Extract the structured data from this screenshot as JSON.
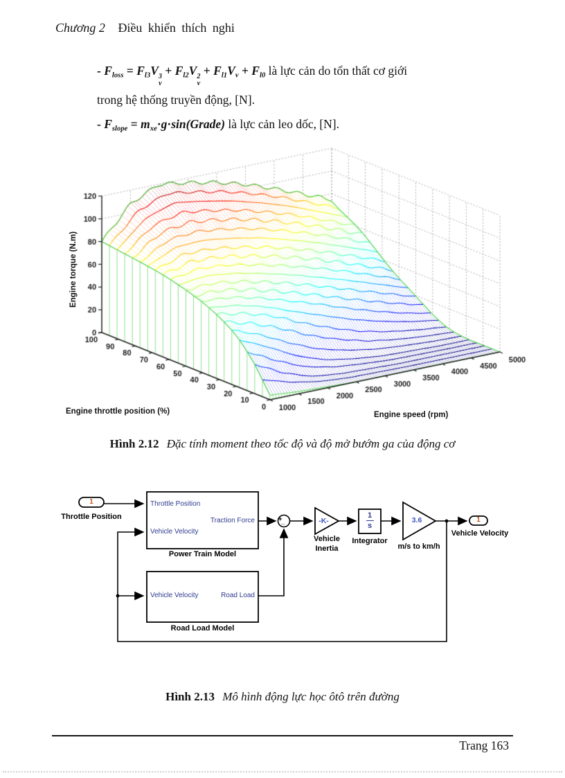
{
  "page": {
    "header": {
      "chapter": "Chương 2",
      "title": "Điều khiển thích nghi"
    },
    "footer": {
      "page_label": "Trang 163"
    }
  },
  "formulas": {
    "loss_tokens": [
      {
        "c": "op",
        "v": "- "
      },
      {
        "c": "var",
        "v": "F"
      },
      {
        "c": "sub",
        "v": "loss"
      },
      {
        "c": "op",
        "v": " = "
      },
      {
        "c": "var",
        "v": "F"
      },
      {
        "c": "sub",
        "v": "l3"
      },
      {
        "c": "var",
        "v": "V"
      },
      {
        "c": "stack",
        "sup": "3",
        "sub": "v"
      },
      {
        "c": "op",
        "v": " + "
      },
      {
        "c": "var",
        "v": "F"
      },
      {
        "c": "sub",
        "v": "l2"
      },
      {
        "c": "var",
        "v": "V"
      },
      {
        "c": "stack",
        "sup": "2",
        "sub": "v"
      },
      {
        "c": "op",
        "v": " + "
      },
      {
        "c": "var",
        "v": "F"
      },
      {
        "c": "sub",
        "v": "l1"
      },
      {
        "c": "var",
        "v": "V"
      },
      {
        "c": "sub",
        "v": "v"
      },
      {
        "c": "op",
        "v": " + "
      },
      {
        "c": "var",
        "v": "F"
      },
      {
        "c": "sub",
        "v": "l0"
      },
      {
        "c": "text",
        "v": " là lực cản do tổn thất cơ giới"
      }
    ],
    "loss_line2": "trong hệ thống truyền động, [N].",
    "slope_tokens": [
      {
        "c": "op",
        "v": "- "
      },
      {
        "c": "var",
        "v": "F"
      },
      {
        "c": "sub",
        "v": "slope"
      },
      {
        "c": "op",
        "v": " = "
      },
      {
        "c": "var",
        "v": "m"
      },
      {
        "c": "sub",
        "v": "xe"
      },
      {
        "c": "op",
        "v": "·"
      },
      {
        "c": "var",
        "v": "g"
      },
      {
        "c": "op",
        "v": "·"
      },
      {
        "c": "var",
        "v": "sin("
      },
      {
        "c": "var",
        "v": "Grade"
      },
      {
        "c": "var",
        "v": ")"
      },
      {
        "c": "text",
        "v": " là lực cản leo dốc, [N]."
      }
    ]
  },
  "figure12": {
    "caption_bold": "Hình 2.12",
    "caption_italic": "Đặc tính moment theo tốc độ và độ mở bướm ga của động cơ"
  },
  "figure13": {
    "caption_bold": "Hình 2.13",
    "caption_italic": "Mô hình động lực học ôtô trên đường"
  },
  "chart_data": {
    "type": "surface",
    "xlabel": "Engine speed (rpm)",
    "ylabel": "Engine throttle position (%)",
    "zlabel": "Engine torque (N.m)",
    "speed_rpm": [
      1000,
      1500,
      2000,
      2500,
      3000,
      3500,
      4000,
      4500,
      5000
    ],
    "throttle_pct": [
      0,
      10,
      20,
      30,
      40,
      50,
      60,
      70,
      80,
      90,
      100
    ],
    "z_ticks": [
      0,
      20,
      40,
      60,
      80,
      100,
      120
    ],
    "zlim": [
      0,
      120
    ],
    "torque_grid": [
      [
        4,
        2,
        1,
        0,
        0,
        0,
        0,
        0,
        0
      ],
      [
        28,
        14,
        5,
        2,
        1,
        0,
        0,
        0,
        0
      ],
      [
        45,
        34,
        20,
        10,
        5,
        2,
        1,
        0,
        0
      ],
      [
        55,
        50,
        42,
        30,
        20,
        12,
        7,
        4,
        2
      ],
      [
        62,
        60,
        54,
        46,
        38,
        29,
        21,
        14,
        9
      ],
      [
        67,
        68,
        64,
        58,
        51,
        43,
        35,
        27,
        19
      ],
      [
        71,
        76,
        74,
        69,
        63,
        56,
        48,
        39,
        30
      ],
      [
        74,
        84,
        84,
        80,
        75,
        68,
        60,
        51,
        42
      ],
      [
        76,
        92,
        95,
        92,
        87,
        80,
        72,
        63,
        53
      ],
      [
        78,
        100,
        108,
        104,
        99,
        92,
        84,
        74,
        64
      ],
      [
        80,
        108,
        120,
        116,
        111,
        104,
        95,
        85,
        75
      ]
    ],
    "colormap": "jet",
    "curtain_color": "#5cd65c",
    "wall_grid_color": "#ababab",
    "axis_color": "#222222"
  },
  "diagram": {
    "inport": {
      "number": "1",
      "label": "Throttle Position"
    },
    "outport": {
      "number": "1",
      "label": "Vehicle Velocity"
    },
    "powertrain": {
      "label": "Power Train Model",
      "port_in1": "Throttle Position",
      "port_in2": "Vehicle Velocity",
      "port_out": "Traction Force"
    },
    "roadload": {
      "label": "Road Load Model",
      "port_in": "Vehicle Velocity",
      "port_out": "Road Load"
    },
    "sum": {
      "plus": "+",
      "minus": "_"
    },
    "gain_inertia": {
      "value": "-K-",
      "label_line1": "Vehicle",
      "label_line2": "Inertia"
    },
    "integrator": {
      "numerator": "1",
      "denominator": "s",
      "label": "Integrator"
    },
    "gain_ms2kmh": {
      "value": "3.6",
      "label": "m/s to km/h"
    }
  }
}
